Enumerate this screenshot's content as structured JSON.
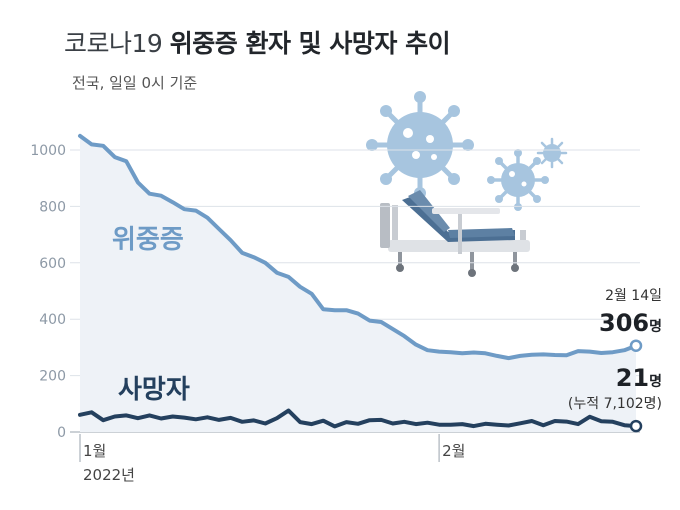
{
  "header": {
    "title_light": "코로나19",
    "title_bold": "위중증 환자 및 사망자 추이",
    "subtitle": "전국, 일일 0시 기준"
  },
  "chart_data": {
    "type": "line",
    "title": "코로나19 위중증 환자 및 사망자 추이",
    "subtitle": "전국, 일일 0시 기준",
    "xlabel": "",
    "ylabel": "",
    "ylim": [
      0,
      1100
    ],
    "yticks": [
      0,
      200,
      400,
      600,
      800,
      1000
    ],
    "xticks": [
      {
        "index": 0,
        "label": "1월",
        "sublabel": "2022년"
      },
      {
        "index": 31,
        "label": "2월",
        "sublabel": ""
      }
    ],
    "grid": true,
    "colors": {
      "severe": "#6e9bc6",
      "death": "#24405e",
      "fill": "#eef2f7"
    },
    "series": [
      {
        "name": "위중증",
        "values": [
          1050,
          1020,
          1015,
          975,
          960,
          885,
          845,
          838,
          815,
          790,
          785,
          760,
          720,
          680,
          635,
          620,
          600,
          565,
          550,
          515,
          490,
          435,
          432,
          432,
          420,
          395,
          390,
          365,
          340,
          310,
          290,
          285,
          283,
          279,
          282,
          279,
          270,
          262,
          270,
          274,
          275,
          273,
          272,
          287,
          285,
          280,
          283,
          290,
          306
        ]
      },
      {
        "name": "사망자",
        "values": [
          61,
          70,
          42,
          55,
          59,
          49,
          59,
          48,
          55,
          51,
          45,
          52,
          43,
          50,
          36,
          41,
          30,
          49,
          76,
          35,
          28,
          40,
          20,
          35,
          29,
          42,
          43,
          30,
          36,
          28,
          33,
          26,
          26,
          28,
          21,
          29,
          26,
          23,
          31,
          39,
          24,
          39,
          37,
          28,
          54,
          38,
          36,
          24,
          21
        ]
      }
    ],
    "annotations": {
      "severe_date": "2월 14일",
      "severe_value": "306",
      "severe_unit": "명",
      "death_value": "21",
      "death_unit": "명",
      "death_cumulative": "(누적 7,102명)"
    }
  }
}
